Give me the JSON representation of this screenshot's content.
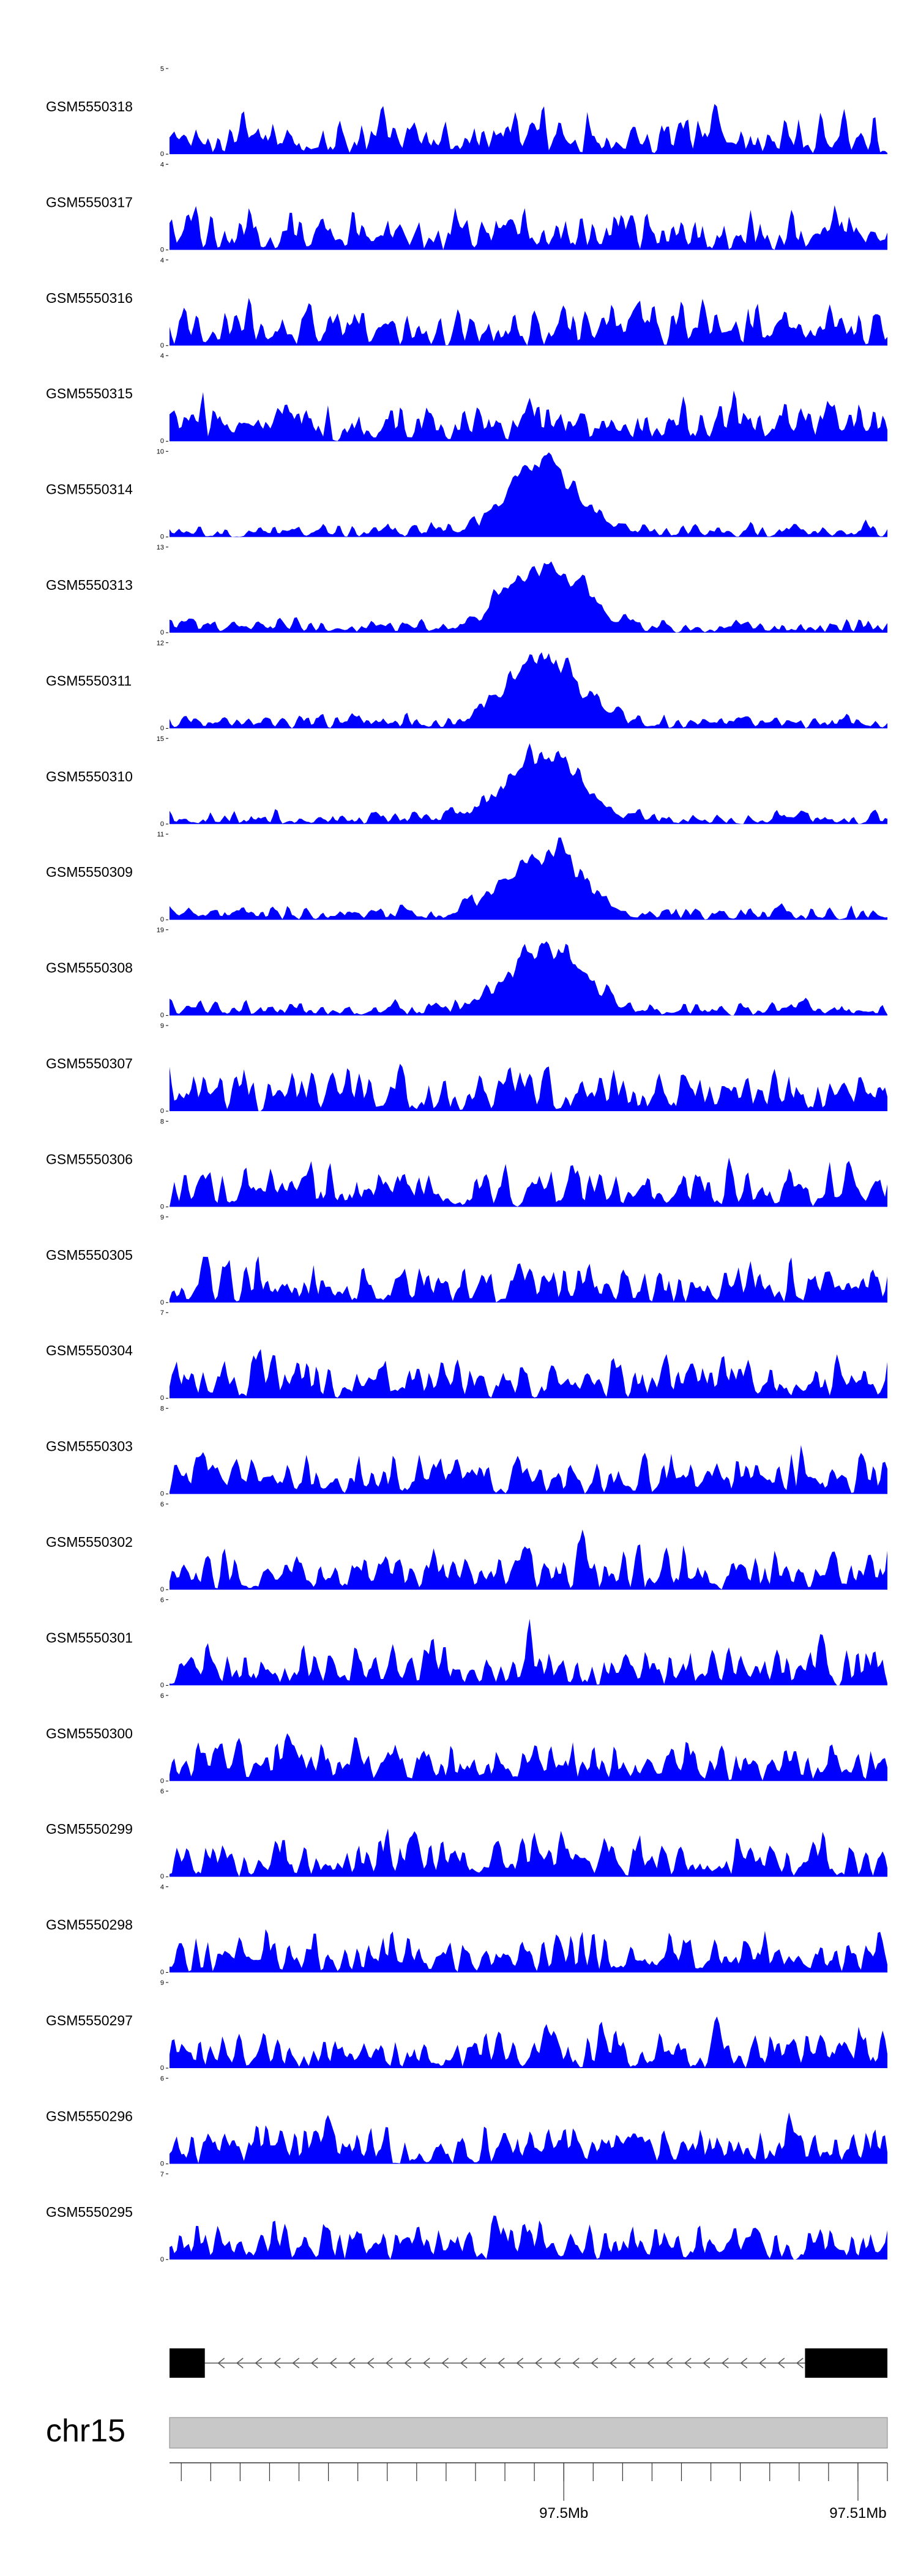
{
  "chart_data": {
    "type": "area",
    "title": "",
    "xlabel": "",
    "ylabel": "",
    "track_color": "#0000FF",
    "gene_color": "#000000",
    "ideogram_color": "#C8C8C8",
    "grid": false,
    "x_range_mb": [
      97.4866,
      97.511
    ],
    "chromosome": "chr15",
    "ticks": [
      {
        "mb": 97.5,
        "label": "97.5Mb"
      },
      {
        "mb": 97.51,
        "label": "97.51Mb"
      }
    ],
    "gene": {
      "strand": "-",
      "exons": [
        [
          97.4866,
          97.4878
        ],
        [
          97.5082,
          97.511
        ]
      ]
    },
    "tracks": [
      {
        "name": "GSM5550318",
        "ymax": "5",
        "ymin": "0"
      },
      {
        "name": "GSM5550317",
        "ymax": "4",
        "ymin": "0"
      },
      {
        "name": "GSM5550316",
        "ymax": "4",
        "ymin": "0"
      },
      {
        "name": "GSM5550315",
        "ymax": "4",
        "ymin": "0"
      },
      {
        "name": "GSM5550314",
        "ymax": "10",
        "ymin": "0"
      },
      {
        "name": "GSM5550313",
        "ymax": "13",
        "ymin": "0"
      },
      {
        "name": "GSM5550311",
        "ymax": "12",
        "ymin": "0"
      },
      {
        "name": "GSM5550310",
        "ymax": "15",
        "ymin": "0"
      },
      {
        "name": "GSM5550309",
        "ymax": "11",
        "ymin": "0"
      },
      {
        "name": "GSM5550308",
        "ymax": "19",
        "ymin": "0"
      },
      {
        "name": "GSM5550307",
        "ymax": "9",
        "ymin": "0"
      },
      {
        "name": "GSM5550306",
        "ymax": "8",
        "ymin": "0"
      },
      {
        "name": "GSM5550305",
        "ymax": "9",
        "ymin": "0"
      },
      {
        "name": "GSM5550304",
        "ymax": "7",
        "ymin": "0"
      },
      {
        "name": "GSM5550303",
        "ymax": "8",
        "ymin": "0"
      },
      {
        "name": "GSM5550302",
        "ymax": "6",
        "ymin": "0"
      },
      {
        "name": "GSM5550301",
        "ymax": "6",
        "ymin": "0"
      },
      {
        "name": "GSM5550300",
        "ymax": "6",
        "ymin": "0"
      },
      {
        "name": "GSM5550299",
        "ymax": "6",
        "ymin": "0"
      },
      {
        "name": "GSM5550298",
        "ymax": "4",
        "ymin": "0"
      },
      {
        "name": "GSM5550297",
        "ymax": "9",
        "ymin": "0"
      },
      {
        "name": "GSM5550296",
        "ymax": "6",
        "ymin": "0"
      },
      {
        "name": "GSM5550295",
        "ymax": "7",
        "ymin": "0"
      }
    ]
  }
}
